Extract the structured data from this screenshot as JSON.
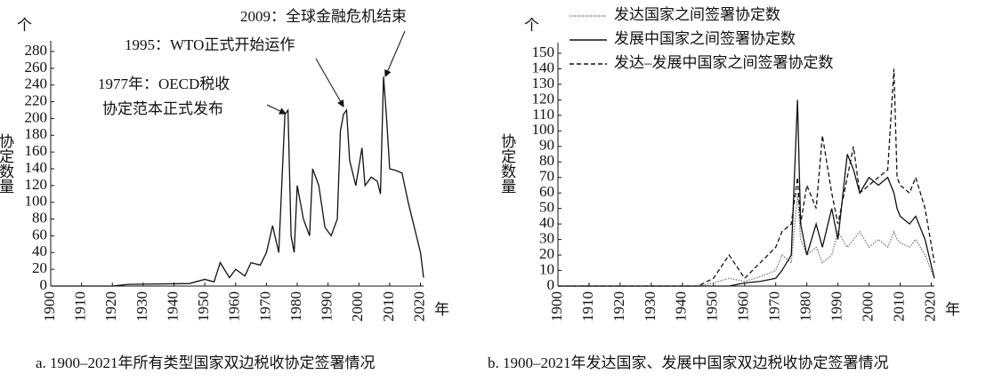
{
  "chart_data": [
    {
      "type": "line",
      "caption": "a. 1900–2021年所有类型国家双边税收协定签署情况",
      "y_unit": "个",
      "ylabel": "协定数量",
      "xlabel": "年",
      "x": [
        1900,
        1920,
        1925,
        1945,
        1950,
        1953,
        1955,
        1958,
        1960,
        1963,
        1965,
        1968,
        1970,
        1972,
        1974,
        1976,
        1977,
        1978,
        1979,
        1980,
        1982,
        1984,
        1985,
        1987,
        1989,
        1991,
        1993,
        1994,
        1995,
        1996,
        1997,
        1999,
        2001,
        2002,
        2004,
        2006,
        2007,
        2008,
        2009,
        2010,
        2012,
        2014,
        2016,
        2018,
        2020,
        2021
      ],
      "values": [
        0,
        0,
        2,
        3,
        8,
        5,
        28,
        10,
        20,
        12,
        28,
        25,
        40,
        72,
        40,
        205,
        210,
        60,
        40,
        120,
        80,
        60,
        140,
        120,
        70,
        60,
        80,
        185,
        205,
        210,
        150,
        120,
        165,
        120,
        130,
        125,
        110,
        250,
        200,
        140,
        138,
        135,
        100,
        70,
        40,
        10
      ],
      "color": "#111",
      "xlim": [
        1900,
        2021
      ],
      "xticks": [
        1900,
        1910,
        1920,
        1930,
        1940,
        1950,
        1960,
        1970,
        1980,
        1990,
        2000,
        2010,
        2020
      ],
      "ylim": [
        0,
        280
      ],
      "yticks": [
        0,
        20,
        40,
        60,
        80,
        100,
        120,
        140,
        160,
        180,
        200,
        220,
        240,
        260,
        280
      ],
      "annotations": [
        {
          "lines": [
            "2009：全球金融危机结束"
          ]
        },
        {
          "lines": [
            "1995：WTO正式开始运作"
          ]
        },
        {
          "lines": [
            "1977年：OECD税收",
            "协定范本正式发布"
          ]
        }
      ]
    },
    {
      "type": "line",
      "caption": "b. 1900–2021年发达国家、发展中国家双边税收协定签署情况",
      "y_unit": "个",
      "ylabel": "协定数量",
      "xlabel": "年",
      "x": [
        1900,
        1945,
        1950,
        1955,
        1960,
        1965,
        1970,
        1972,
        1975,
        1977,
        1978,
        1980,
        1983,
        1985,
        1988,
        1990,
        1993,
        1995,
        1997,
        2000,
        2003,
        2006,
        2008,
        2009,
        2010,
        2013,
        2015,
        2018,
        2021
      ],
      "series": [
        {
          "name": "发达国家之间签署协定数",
          "color": "#777",
          "dash": "1.5,1.5",
          "values": [
            0,
            0,
            2,
            5,
            3,
            6,
            10,
            20,
            15,
            60,
            30,
            20,
            25,
            15,
            20,
            35,
            25,
            30,
            35,
            25,
            30,
            25,
            35,
            30,
            28,
            25,
            30,
            20,
            5
          ]
        },
        {
          "name": "发展中国家之间签署协定数",
          "color": "#111",
          "dash": "none",
          "values": [
            0,
            0,
            0,
            0,
            2,
            3,
            5,
            10,
            20,
            120,
            40,
            20,
            40,
            25,
            50,
            30,
            85,
            75,
            60,
            70,
            65,
            70,
            60,
            50,
            45,
            40,
            45,
            30,
            5
          ]
        },
        {
          "name": "发达–发展中国家之间签署协定数",
          "color": "#111",
          "dash": "5,3",
          "values": [
            0,
            0,
            5,
            20,
            5,
            15,
            25,
            35,
            40,
            70,
            40,
            65,
            50,
            97,
            60,
            40,
            70,
            90,
            60,
            65,
            70,
            75,
            140,
            70,
            65,
            60,
            70,
            50,
            15
          ]
        }
      ],
      "xlim": [
        1900,
        2021
      ],
      "xticks": [
        1900,
        1910,
        1920,
        1930,
        1940,
        1950,
        1960,
        1970,
        1980,
        1990,
        2000,
        2010,
        2020
      ],
      "ylim": [
        0,
        150
      ],
      "yticks": [
        0,
        10,
        20,
        30,
        40,
        50,
        60,
        70,
        80,
        90,
        100,
        110,
        120,
        130,
        140,
        150
      ]
    }
  ]
}
